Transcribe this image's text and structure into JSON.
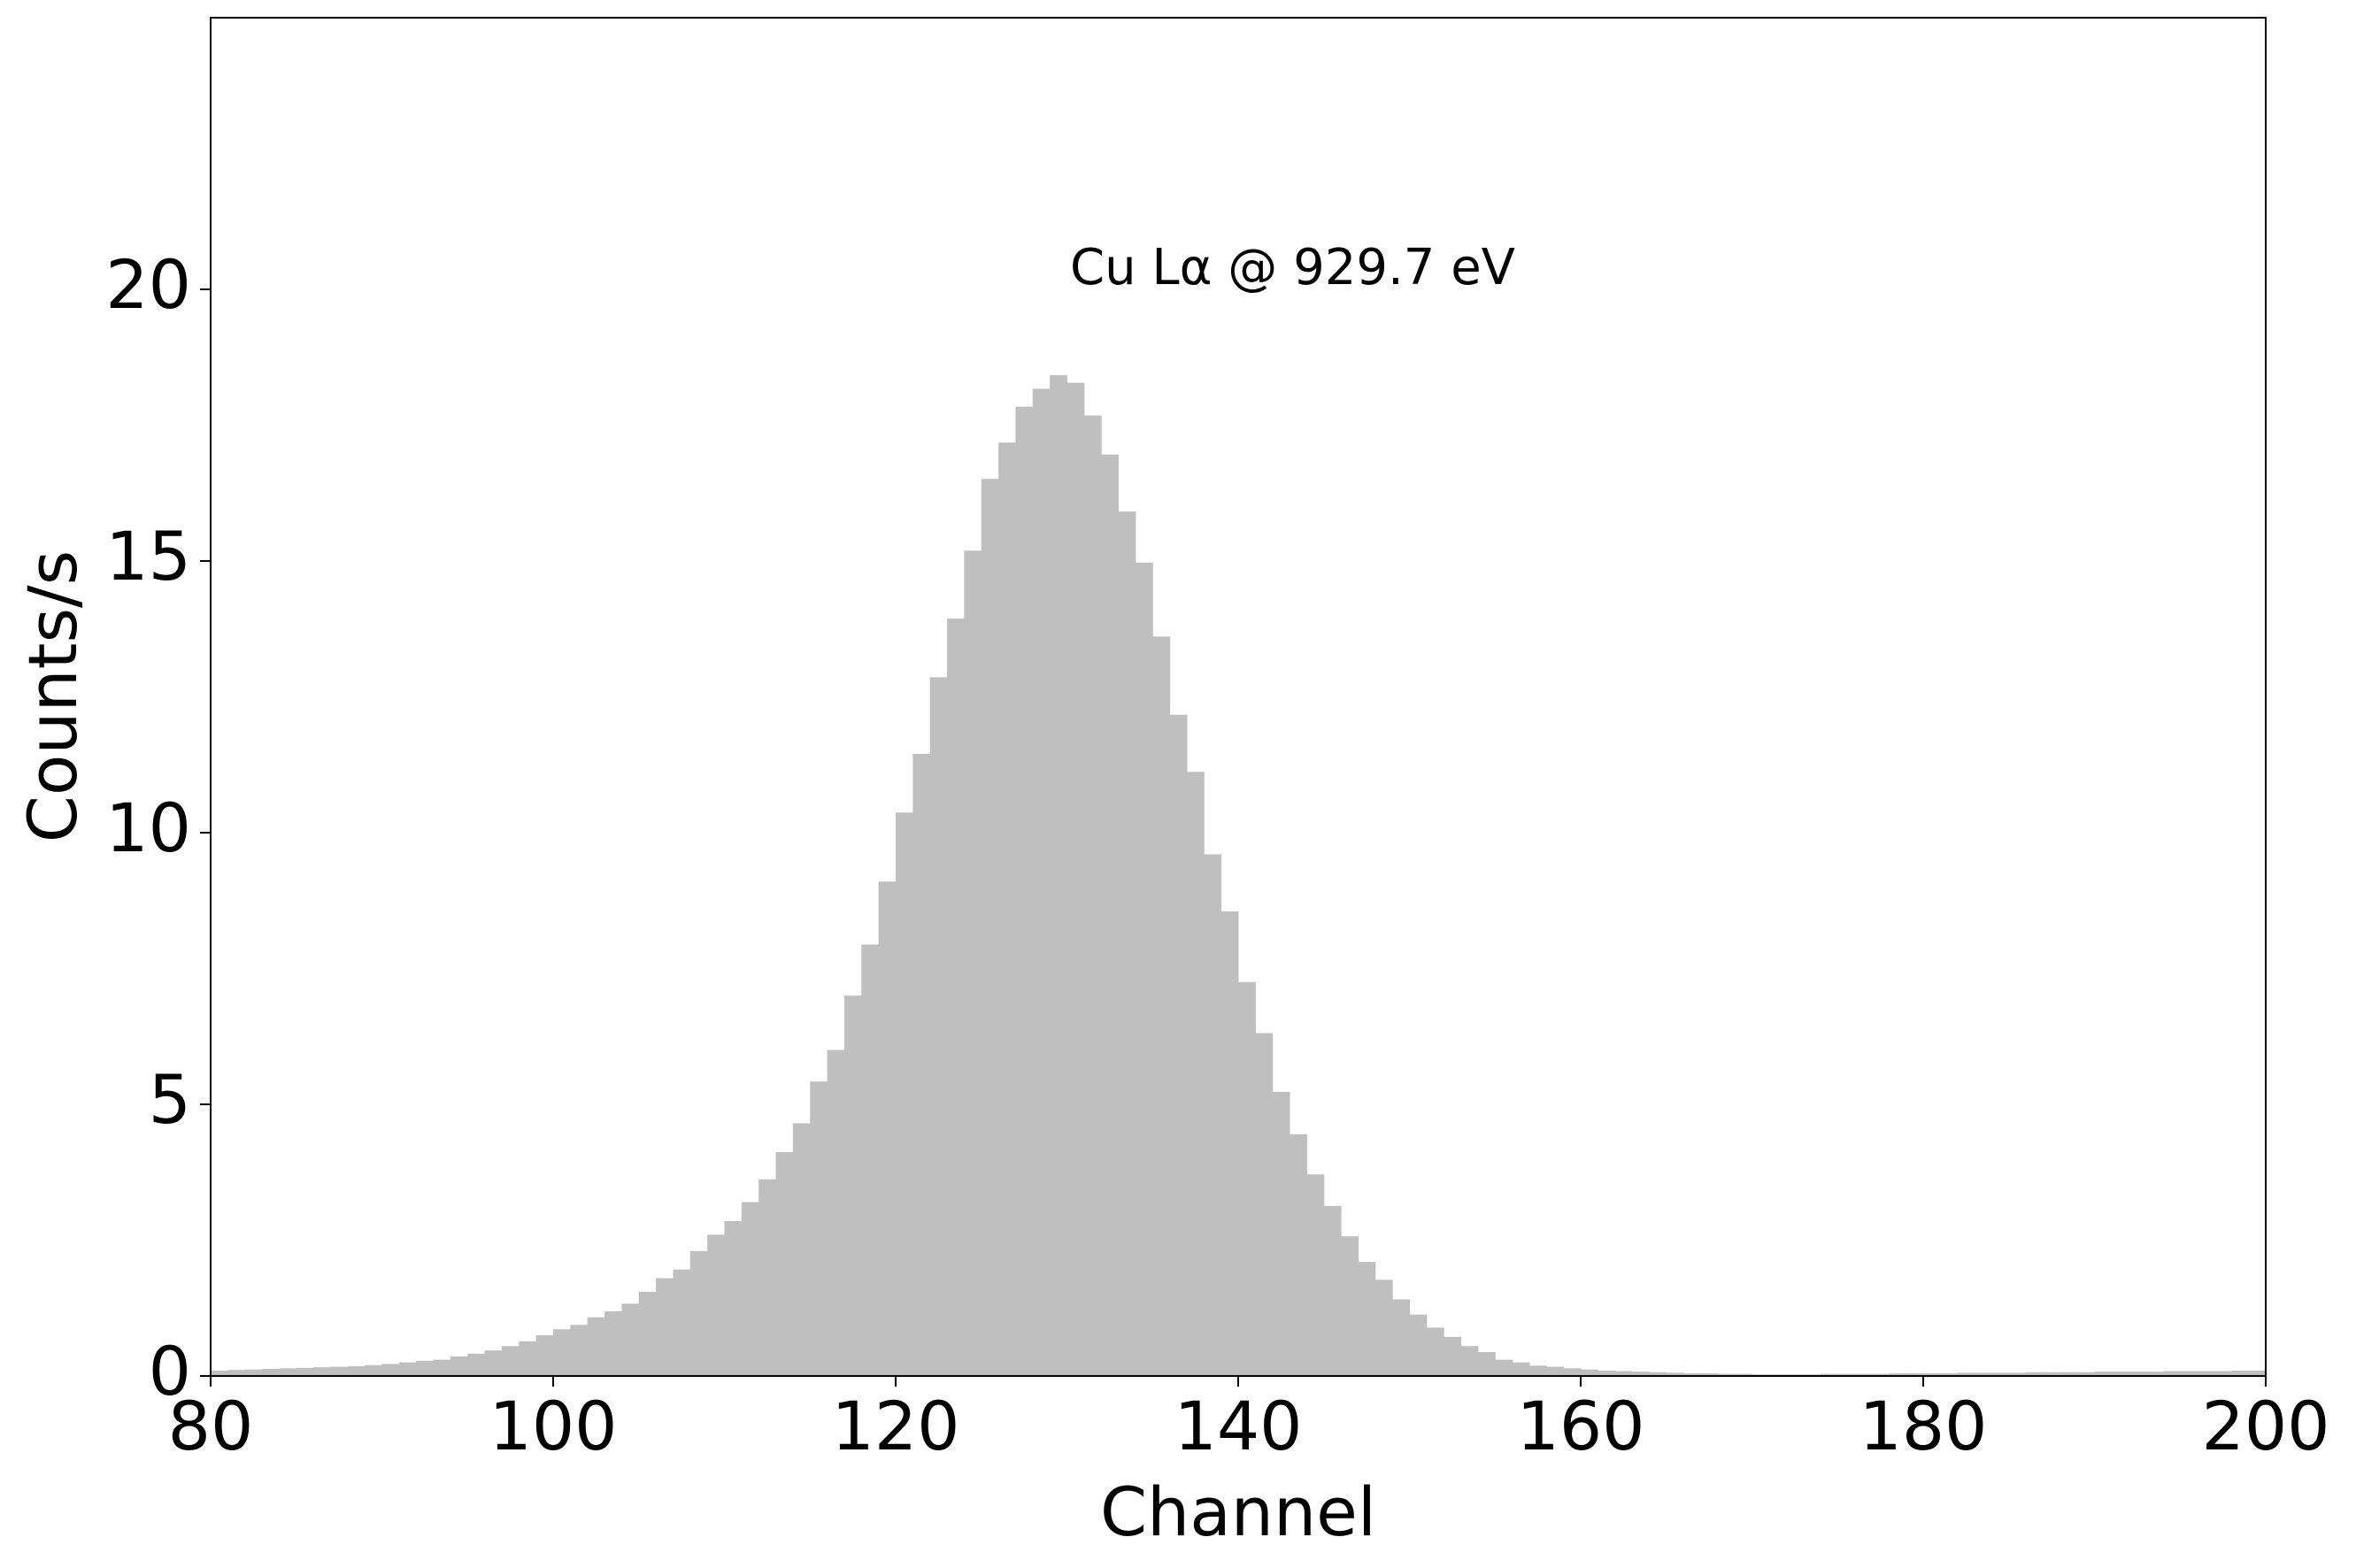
{
  "chart_data": {
    "type": "histogram",
    "annotation": "Cu Lα @ 929.7 eV",
    "x_label": "Channel",
    "y_label": "Counts/s",
    "color": "#bfbfbf",
    "bins": [
      80,
      81,
      82,
      83,
      84,
      85,
      86,
      87,
      88,
      89,
      90,
      91,
      92,
      93,
      94,
      95,
      96,
      97,
      98,
      99,
      100,
      101,
      102,
      103,
      104,
      105,
      106,
      107,
      108,
      109,
      110,
      111,
      112,
      113,
      114,
      115,
      116,
      117,
      118,
      119,
      120,
      121,
      122,
      123,
      124,
      125,
      126,
      127,
      128,
      129,
      130,
      131,
      132,
      133,
      134,
      135,
      136,
      137,
      138,
      139,
      140,
      141,
      142,
      143,
      144,
      145,
      146,
      147,
      148,
      149,
      150,
      151,
      152,
      153,
      154,
      155,
      156,
      157,
      158,
      159,
      160,
      161,
      162,
      163,
      164,
      165,
      166,
      167,
      168,
      169,
      170,
      171,
      172,
      173,
      174,
      175,
      176,
      177,
      178,
      179,
      180,
      181,
      182,
      183,
      184,
      185,
      186,
      187,
      188,
      189,
      190,
      191,
      192,
      193,
      194,
      195,
      196,
      197,
      198,
      199,
      200
    ],
    "counts": [
      0.1,
      0.11,
      0.12,
      0.13,
      0.14,
      0.15,
      0.16,
      0.17,
      0.18,
      0.2,
      0.22,
      0.25,
      0.28,
      0.3,
      0.36,
      0.41,
      0.47,
      0.55,
      0.64,
      0.75,
      0.86,
      0.94,
      1.08,
      1.19,
      1.33,
      1.55,
      1.8,
      1.96,
      2.3,
      2.6,
      2.85,
      3.2,
      3.62,
      4.12,
      4.65,
      5.42,
      6.0,
      7.0,
      7.94,
      9.1,
      10.37,
      11.45,
      12.86,
      13.94,
      15.19,
      16.51,
      17.18,
      17.84,
      18.17,
      18.42,
      18.28,
      17.68,
      16.96,
      15.91,
      14.97,
      13.61,
      12.17,
      11.12,
      9.6,
      8.55,
      7.25,
      6.31,
      5.23,
      4.45,
      3.71,
      3.13,
      2.57,
      2.1,
      1.77,
      1.41,
      1.13,
      0.89,
      0.72,
      0.55,
      0.44,
      0.3,
      0.25,
      0.19,
      0.17,
      0.14,
      0.12,
      0.1,
      0.09,
      0.08,
      0.07,
      0.06,
      0.05,
      0.05,
      0.04,
      0.04,
      0.03,
      0.03,
      0.03,
      0.03,
      0.04,
      0.04,
      0.04,
      0.04,
      0.05,
      0.05,
      0.05,
      0.05,
      0.06,
      0.06,
      0.06,
      0.06,
      0.07,
      0.07,
      0.07,
      0.07,
      0.08,
      0.08,
      0.08,
      0.08,
      0.09,
      0.09,
      0.09,
      0.09,
      0.1,
      0.1
    ],
    "xlim": [
      80,
      200
    ],
    "ylim": [
      0,
      25
    ],
    "xticks": [
      80,
      100,
      120,
      140,
      160,
      180,
      200
    ],
    "yticks": [
      0,
      5,
      10,
      15,
      20
    ],
    "grid": false
  }
}
